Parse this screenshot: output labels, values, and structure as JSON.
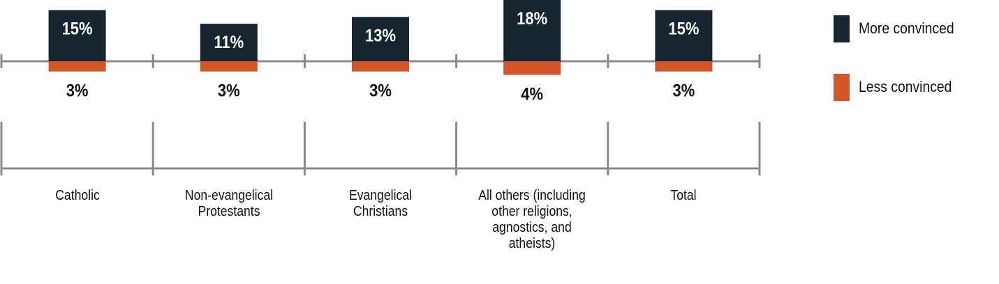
{
  "chart_data": {
    "type": "bar",
    "title": "",
    "xlabel": "",
    "ylabel": "",
    "categories": [
      "Catholic",
      "Non-evangelical Protestants",
      "Evangelical Christians",
      "All others (including other religions, agnostics, and atheists)",
      "Total"
    ],
    "category_lines": [
      [
        "Catholic"
      ],
      [
        "Non-evangelical",
        "Protestants"
      ],
      [
        "Evangelical",
        "Christians"
      ],
      [
        "All others (including",
        "other religions,",
        "agnostics, and",
        "atheists)"
      ],
      [
        "Total"
      ]
    ],
    "series": [
      {
        "name": "More convinced",
        "direction": "up",
        "color": "#17252f",
        "values": [
          15,
          11,
          13,
          18,
          15
        ],
        "labels": [
          "15%",
          "11%",
          "13%",
          "18%",
          "15%"
        ]
      },
      {
        "name": "Less convinced",
        "direction": "down",
        "color": "#d2562a",
        "values": [
          3,
          3,
          3,
          4,
          3
        ],
        "labels": [
          "3%",
          "3%",
          "3%",
          "4%",
          "3%"
        ]
      }
    ],
    "legend_position": "right",
    "grid": false
  }
}
